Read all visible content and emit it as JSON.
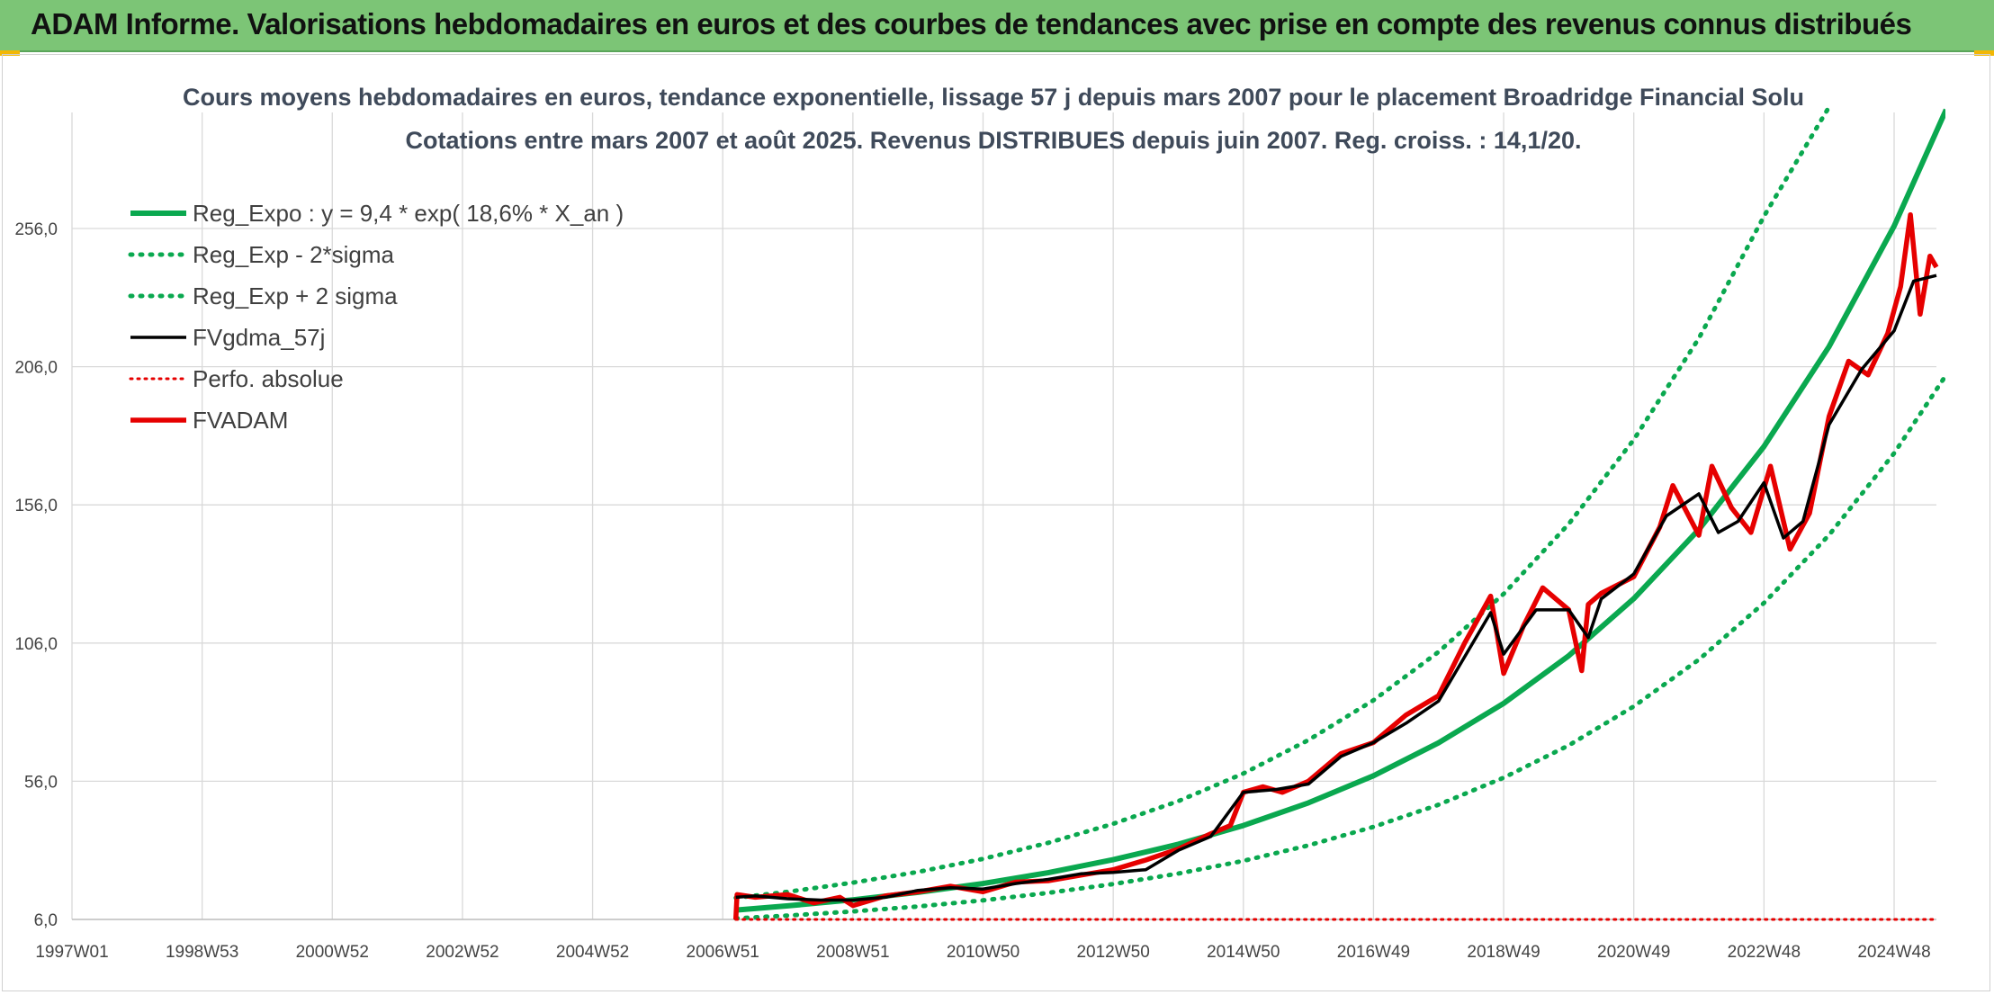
{
  "banner": {
    "title": "ADAM Informe. Valorisations hebdomadaires en euros et des courbes de tendances avec prise en compte des revenus connus distribués"
  },
  "colors": {
    "banner": "#7cc576",
    "trend": "#0aa84f",
    "band": "#0aa84f",
    "average": "#000000",
    "perfo": "#e60000",
    "fvadam": "#e60000",
    "grid": "#d9d9d9"
  },
  "chart_data": {
    "type": "line",
    "title": "Cours moyens hebdomadaires en euros, tendance exponentielle, lissage 57 j depuis mars 2007 pour le placement Broadridge Financial Solu",
    "subtitle": "Cotations entre mars 2007 et août 2025. Revenus DISTRIBUES depuis juin 2007. Reg. croiss. : 14,1/20.",
    "xlabel": "",
    "ylabel": "",
    "xlim": [
      1997.0,
      2025.65
    ],
    "ylim": [
      6,
      298
    ],
    "grid": true,
    "legend_position": "top-left",
    "x_ticks": [
      {
        "label": "1997W01",
        "x": 1997.0
      },
      {
        "label": "1998W53",
        "x": 1999.0
      },
      {
        "label": "2000W52",
        "x": 2001.0
      },
      {
        "label": "2002W52",
        "x": 2003.0
      },
      {
        "label": "2004W52",
        "x": 2005.0
      },
      {
        "label": "2006W51",
        "x": 2007.0
      },
      {
        "label": "2008W51",
        "x": 2009.0
      },
      {
        "label": "2010W50",
        "x": 2011.0
      },
      {
        "label": "2012W50",
        "x": 2013.0
      },
      {
        "label": "2014W50",
        "x": 2015.0
      },
      {
        "label": "2016W49",
        "x": 2017.0
      },
      {
        "label": "2018W49",
        "x": 2019.0
      },
      {
        "label": "2020W49",
        "x": 2021.0
      },
      {
        "label": "2022W48",
        "x": 2023.0
      },
      {
        "label": "2024W48",
        "x": 2025.0
      }
    ],
    "y_ticks": [
      {
        "label": "6,0",
        "y": 6
      },
      {
        "label": "56,0",
        "y": 56
      },
      {
        "label": "106,0",
        "y": 106
      },
      {
        "label": "156,0",
        "y": 156
      },
      {
        "label": "206,0",
        "y": 206
      },
      {
        "label": "256,0",
        "y": 256
      }
    ],
    "legend": [
      {
        "key": "reg_expo",
        "label": "Reg_Expo : y = 9,4 * exp( 18,6% *  X_an )",
        "style": "solid-green"
      },
      {
        "key": "reg_minus",
        "label": "Reg_Exp - 2*sigma",
        "style": "dotted-green"
      },
      {
        "key": "reg_plus",
        "label": "Reg_Exp + 2 sigma",
        "style": "dotted-green"
      },
      {
        "key": "fvgdma",
        "label": "FVgdma_57j",
        "style": "solid-black"
      },
      {
        "key": "perfo",
        "label": "Perfo. absolue",
        "style": "dotted-red"
      },
      {
        "key": "fvadam",
        "label": "FVADAM",
        "style": "solid-red"
      }
    ],
    "series": [
      {
        "name": "Reg_Expo : y = 9,4 * exp( 18,6% *  X_an )",
        "x": [
          2007.2,
          2008.0,
          2009.0,
          2010.0,
          2011.0,
          2012.0,
          2013.0,
          2014.0,
          2015.0,
          2016.0,
          2017.0,
          2018.0,
          2019.0,
          2020.0,
          2021.0,
          2022.0,
          2023.0,
          2024.0,
          2025.0,
          2025.8
        ],
        "y": [
          9.4,
          10.9,
          13.1,
          15.8,
          19.0,
          22.9,
          27.6,
          33.2,
          40.0,
          48.2,
          58.0,
          69.9,
          84.2,
          101.4,
          122.1,
          147.1,
          177.1,
          213.3,
          256.9,
          299.0
        ]
      },
      {
        "name": "Reg_Exp - 2*sigma",
        "x": [
          2007.2,
          2008.0,
          2009.0,
          2010.0,
          2011.0,
          2012.0,
          2013.0,
          2014.0,
          2015.0,
          2016.0,
          2017.0,
          2018.0,
          2019.0,
          2020.0,
          2021.0,
          2022.0,
          2023.0,
          2024.0,
          2025.0,
          2025.8
        ],
        "y": [
          6.4,
          7.4,
          8.9,
          10.7,
          12.9,
          15.6,
          18.8,
          22.6,
          27.2,
          32.8,
          39.5,
          47.5,
          57.3,
          69.0,
          83.1,
          100.0,
          120.5,
          145.1,
          174.7,
          203.0
        ]
      },
      {
        "name": "Reg_Exp + 2 sigma",
        "x": [
          2007.2,
          2008.0,
          2009.0,
          2010.0,
          2011.0,
          2012.0,
          2013.0,
          2014.0,
          2015.0,
          2016.0,
          2017.0,
          2018.0,
          2019.0,
          2020.0,
          2021.0,
          2022.0,
          2023.0,
          2024.0,
          2024.05,
          2025.8
        ],
        "y": [
          13.8,
          16.0,
          19.3,
          23.2,
          27.9,
          33.7,
          40.6,
          48.8,
          58.8,
          70.9,
          85.3,
          102.8,
          123.8,
          149.1,
          179.6,
          216.3,
          260.4,
          300.0,
          303.0,
          303.0
        ]
      },
      {
        "name": "FVgdma_57j",
        "x": [
          2007.2,
          2007.5,
          2008.0,
          2008.5,
          2009.0,
          2009.5,
          2010.0,
          2010.5,
          2011.0,
          2011.5,
          2012.0,
          2012.5,
          2013.0,
          2013.5,
          2014.0,
          2014.5,
          2015.0,
          2015.5,
          2016.0,
          2016.5,
          2017.0,
          2017.5,
          2018.0,
          2018.5,
          2018.8,
          2019.0,
          2019.5,
          2020.0,
          2020.3,
          2020.5,
          2021.0,
          2021.5,
          2022.0,
          2022.3,
          2022.6,
          2023.0,
          2023.3,
          2023.6,
          2024.0,
          2024.5,
          2025.0,
          2025.3,
          2025.65
        ],
        "y": [
          14.0,
          14.5,
          13.5,
          13.0,
          13.0,
          14.0,
          16.5,
          17.5,
          17.0,
          19.0,
          20.5,
          22.5,
          23.0,
          24.0,
          31.0,
          36.0,
          52.0,
          53.0,
          55.0,
          65.0,
          70.0,
          77.0,
          85.0,
          105.0,
          117.0,
          102.0,
          118.0,
          118.0,
          108.0,
          122.0,
          131.0,
          152.0,
          160.0,
          146.0,
          150.0,
          164.0,
          144.0,
          150.0,
          185.0,
          205.0,
          219.0,
          237.0,
          239.0
        ]
      },
      {
        "name": "Perfo. absolue",
        "x": [
          2007.2,
          2025.65
        ],
        "y": [
          6,
          6
        ]
      },
      {
        "name": "FVADAM",
        "x": [
          2007.2,
          2007.22,
          2007.5,
          2008.0,
          2008.4,
          2008.8,
          2009.0,
          2009.5,
          2010.0,
          2010.5,
          2011.0,
          2011.5,
          2012.0,
          2012.5,
          2013.0,
          2013.5,
          2014.0,
          2014.5,
          2014.8,
          2015.0,
          2015.3,
          2015.6,
          2016.0,
          2016.5,
          2017.0,
          2017.5,
          2018.0,
          2018.4,
          2018.8,
          2019.0,
          2019.3,
          2019.6,
          2020.0,
          2020.2,
          2020.3,
          2020.5,
          2021.0,
          2021.4,
          2021.6,
          2022.0,
          2022.2,
          2022.5,
          2022.8,
          2023.1,
          2023.4,
          2023.7,
          2024.0,
          2024.3,
          2024.6,
          2024.9,
          2025.1,
          2025.25,
          2025.4,
          2025.55,
          2025.65
        ],
        "y": [
          6.0,
          15.0,
          14.0,
          15.0,
          12.0,
          14.0,
          11.0,
          14.5,
          16.0,
          18.0,
          16.0,
          19.5,
          20.0,
          22.0,
          24.0,
          27.5,
          31.5,
          37.0,
          40.0,
          52.0,
          54.0,
          52.0,
          56.0,
          66.0,
          70.0,
          80.0,
          87.0,
          106.0,
          123.0,
          95.0,
          112.0,
          126.0,
          118.0,
          96.0,
          120.0,
          124.0,
          130.0,
          148.0,
          163.0,
          145.0,
          170.0,
          155.0,
          146.0,
          170.0,
          140.0,
          153.0,
          188.0,
          208.0,
          203.0,
          218.0,
          235.0,
          261.0,
          225.0,
          246.0,
          242.0
        ]
      }
    ]
  }
}
